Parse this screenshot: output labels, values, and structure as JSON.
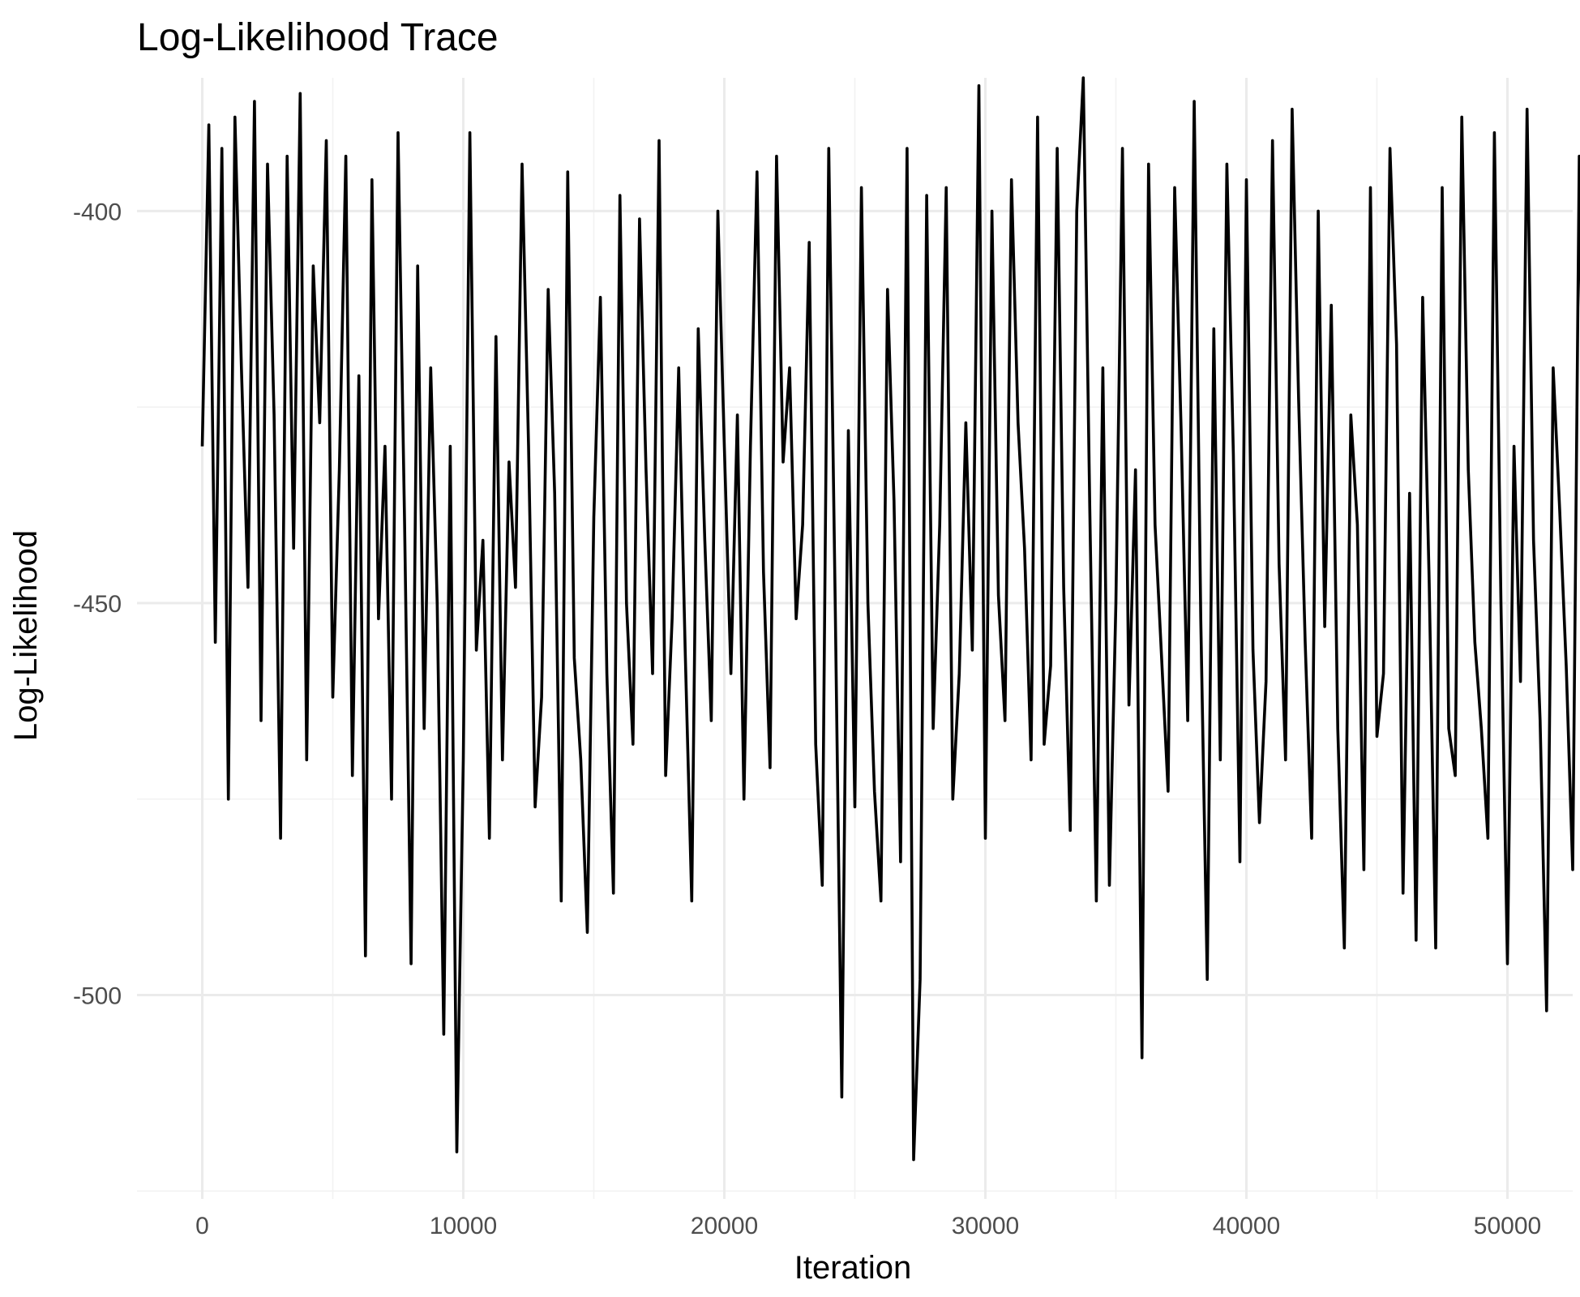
{
  "chart_data": {
    "type": "line",
    "title": "Log-Likelihood Trace",
    "xlabel": "Iteration",
    "ylabel": "Log-Likelihood",
    "xlim": [
      -2500,
      52500
    ],
    "ylim": [
      -526,
      -383
    ],
    "x_ticks": [
      0,
      10000,
      20000,
      30000,
      40000,
      50000
    ],
    "y_ticks": [
      -400,
      -450,
      -500
    ],
    "grid": true,
    "legend": "none",
    "line_color": "#000000",
    "series": [
      {
        "x_start": 1,
        "x_step": 250,
        "values": [
          -430,
          -389,
          -455,
          -392,
          -475,
          -388,
          -420,
          -448,
          -386,
          -465,
          -394,
          -426,
          -480,
          -393,
          -443,
          -385,
          -470,
          -407,
          -427,
          -391,
          -462,
          -433,
          -393,
          -472,
          -421,
          -495,
          -396,
          -452,
          -430,
          -475,
          -390,
          -440,
          -496,
          -407,
          -466,
          -420,
          -450,
          -505,
          -430,
          -520,
          -470,
          -390,
          -456,
          -442,
          -480,
          -416,
          -470,
          -432,
          -448,
          -394,
          -430,
          -476,
          -462,
          -410,
          -436,
          -488,
          -395,
          -457,
          -470,
          -492,
          -439,
          -411,
          -459,
          -487,
          -398,
          -450,
          -468,
          -401,
          -433,
          -459,
          -391,
          -472,
          -452,
          -420,
          -456,
          -488,
          -415,
          -442,
          -465,
          -400,
          -430,
          -459,
          -426,
          -475,
          -430,
          -395,
          -446,
          -471,
          -393,
          -432,
          -420,
          -452,
          -440,
          -404,
          -468,
          -486,
          -392,
          -451,
          -513,
          -428,
          -476,
          -397,
          -450,
          -474,
          -488,
          -410,
          -437,
          -483,
          -392,
          -521,
          -498,
          -398,
          -466,
          -440,
          -397,
          -475,
          -459,
          -427,
          -456,
          -384,
          -480,
          -400,
          -449,
          -465,
          -396,
          -427,
          -443,
          -470,
          -388,
          -468,
          -458,
          -392,
          -448,
          -479,
          -400,
          -383,
          -438,
          -488,
          -420,
          -486,
          -450,
          -392,
          -463,
          -433,
          -508,
          -394,
          -440,
          -457,
          -474,
          -397,
          -428,
          -465,
          -386,
          -452,
          -498,
          -415,
          -470,
          -394,
          -431,
          -483,
          -396,
          -456,
          -478,
          -460,
          -391,
          -445,
          -470,
          -387,
          -424,
          -455,
          -480,
          -400,
          -453,
          -412,
          -466,
          -494,
          -426,
          -440,
          -484,
          -397,
          -467,
          -459,
          -392,
          -417,
          -487,
          -436,
          -493,
          -411,
          -447,
          -494,
          -397,
          -466,
          -472,
          -388,
          -433,
          -455,
          -466,
          -480,
          -390,
          -450,
          -496,
          -430,
          -460,
          -387,
          -442,
          -465,
          -502,
          -420,
          -438,
          -458,
          -484,
          -393,
          -450,
          -466,
          -392,
          -429,
          -476,
          -447,
          -463,
          -393,
          -486,
          -435,
          -474,
          -389,
          -459,
          -481,
          -425,
          -480,
          -441,
          -393,
          -461,
          -497,
          -431,
          -458,
          -388,
          -473,
          -444,
          -496,
          -408,
          -452,
          -484,
          -397,
          -470,
          -456,
          -413,
          -458,
          -494,
          -390,
          -471,
          -524,
          -448,
          -403,
          -488,
          -520,
          -410,
          -527,
          -468,
          -425,
          -509,
          -390,
          -455,
          -475,
          -485,
          -392,
          -468,
          -428,
          -490,
          -440,
          -399,
          -459,
          -482,
          -462,
          -393,
          -470,
          -448,
          -485,
          -416,
          -455,
          -495,
          -404,
          -440,
          -483,
          -397,
          -456,
          -471,
          -394,
          -451,
          -488,
          -386,
          -459,
          -496,
          -432,
          -476,
          -444,
          -392,
          -463,
          -418,
          -481,
          -407,
          -469,
          -495,
          -387,
          -442,
          -488,
          -403,
          -469,
          -435,
          -480,
          -453,
          -390,
          -474,
          -430,
          -458,
          -397,
          -495,
          -442,
          -480,
          -412,
          -465,
          -487,
          -451,
          -390,
          -486,
          -401,
          -460,
          -430,
          -388,
          -470,
          -455,
          -492,
          -418,
          -529,
          -470,
          -437,
          -453,
          -494,
          -404,
          -450,
          -485,
          -428,
          -463,
          -492,
          -406,
          -440,
          -471,
          -395,
          -458,
          -488,
          -420,
          -386,
          -466,
          -445,
          -481,
          -388,
          -458,
          -425,
          -475,
          -388,
          -444,
          -485,
          -392,
          -458,
          -489,
          -414,
          -470,
          -398,
          -482,
          -432,
          -456,
          -402,
          -487,
          -441,
          -493,
          -388,
          -448,
          -405,
          -486,
          -458,
          -425,
          -396,
          -474,
          -437,
          -489,
          -395,
          -465,
          -500,
          -440,
          -520,
          -391,
          -461,
          -483,
          -414,
          -472,
          -389,
          -456,
          -482,
          -398,
          -450,
          -479,
          -407,
          -460,
          -392,
          -515,
          -445,
          -469,
          -396,
          -488,
          -521,
          -404,
          -470,
          -444,
          -495,
          -390,
          -463,
          -435,
          -486,
          -400,
          -455,
          -485,
          -517,
          -389,
          -474,
          -528,
          -442,
          -395,
          -488,
          -462,
          -385,
          -445,
          -494,
          -396,
          -476,
          -432,
          -486,
          -393,
          -465,
          -489,
          -388,
          -447,
          -497,
          -409,
          -460,
          -386,
          -470,
          -386,
          -455,
          -495,
          -383,
          -465,
          -440,
          -472,
          -402,
          -490,
          -460,
          -406,
          -495,
          -514,
          -432,
          -518,
          -452,
          -470,
          -418,
          -457,
          -415,
          -455,
          -420,
          -466,
          -430,
          -455,
          -425,
          -416,
          -455,
          -462,
          -430,
          -448,
          -420,
          -462
        ]
      }
    ]
  }
}
